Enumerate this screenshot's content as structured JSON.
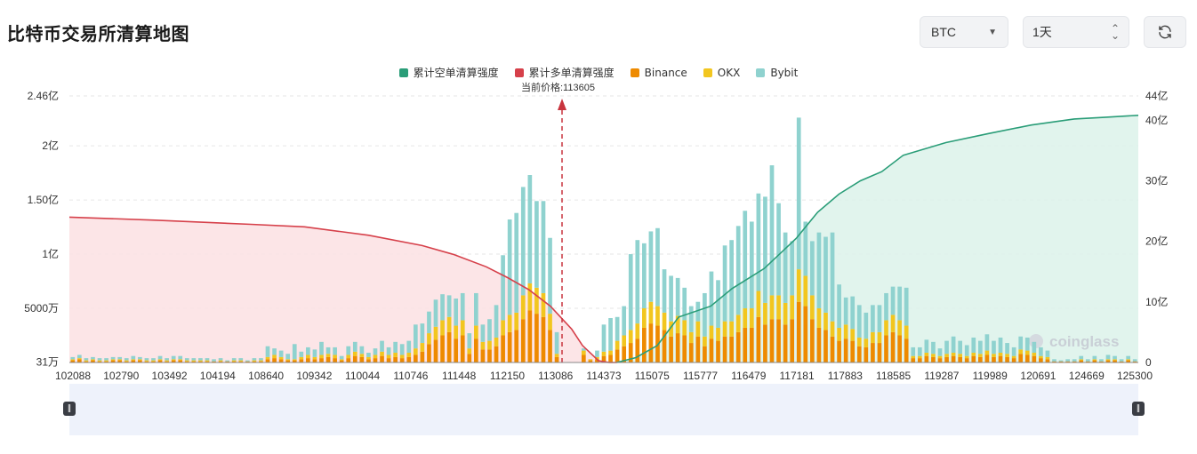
{
  "page": {
    "title": "比特币交易所清算地图",
    "coin_select": {
      "value": "BTC"
    },
    "period_select": {
      "value": "1天"
    },
    "refresh_icon": "refresh-icon",
    "watermark": "coinglass",
    "current_price_label": "当前价格:113605"
  },
  "chart_data": {
    "type": "bar",
    "title": "",
    "legend": [
      {
        "name": "累计空单清算强度",
        "color": "#2a9d78"
      },
      {
        "name": "累计多单清算强度",
        "color": "#d6404a"
      },
      {
        "name": "Binance",
        "color": "#ee8a00"
      },
      {
        "name": "OKX",
        "color": "#f2c61f"
      },
      {
        "name": "Bybit",
        "color": "#8fd2cf"
      }
    ],
    "current_price": 113605,
    "x_tick_labels": [
      "102088",
      "102790",
      "103492",
      "104194",
      "108640",
      "109342",
      "110044",
      "110746",
      "111448",
      "112150",
      "113086",
      "114373",
      "115075",
      "115777",
      "116479",
      "117181",
      "117883",
      "118585",
      "119287",
      "119989",
      "120691",
      "124669",
      "125300"
    ],
    "y_left_ticks": [
      "31万",
      "5000万",
      "1亿",
      "1.50亿",
      "2亿",
      "2.46亿"
    ],
    "y_left_values": [
      0.0031,
      0.5,
      1.0,
      1.5,
      2.0,
      2.46
    ],
    "y_left_unit": "亿",
    "y_right_ticks": [
      "0",
      "10亿",
      "20亿",
      "30亿",
      "40亿",
      "44亿"
    ],
    "y_right_values": [
      0,
      10,
      20,
      30,
      40,
      44
    ],
    "y_right_unit": "亿",
    "bars": {
      "binance": [
        0.02,
        0.03,
        0.01,
        0.02,
        0.01,
        0.01,
        0.02,
        0.02,
        0.01,
        0.02,
        0.02,
        0.01,
        0.01,
        0.02,
        0.01,
        0.02,
        0.02,
        0.01,
        0.01,
        0.01,
        0.01,
        0.01,
        0.01,
        0.01,
        0.01,
        0.01,
        0.01,
        0.01,
        0.01,
        0.03,
        0.04,
        0.03,
        0.02,
        0.02,
        0.03,
        0.04,
        0.03,
        0.04,
        0.05,
        0.04,
        0.02,
        0.04,
        0.06,
        0.05,
        0.03,
        0.04,
        0.06,
        0.04,
        0.05,
        0.04,
        0.05,
        0.07,
        0.1,
        0.17,
        0.21,
        0.25,
        0.28,
        0.22,
        0.25,
        0.08,
        0.22,
        0.12,
        0.12,
        0.15,
        0.25,
        0.28,
        0.3,
        0.4,
        0.48,
        0.45,
        0.42,
        0.3,
        0.05,
        0.0,
        0.0,
        0.0,
        0.07,
        0.02,
        0.03,
        0.06,
        0.07,
        0.12,
        0.15,
        0.18,
        0.22,
        0.32,
        0.36,
        0.34,
        0.3,
        0.24,
        0.27,
        0.25,
        0.18,
        0.24,
        0.15,
        0.22,
        0.2,
        0.24,
        0.24,
        0.28,
        0.32,
        0.32,
        0.42,
        0.35,
        0.4,
        0.4,
        0.35,
        0.4,
        0.56,
        0.52,
        0.4,
        0.32,
        0.3,
        0.24,
        0.2,
        0.22,
        0.2,
        0.15,
        0.14,
        0.18,
        0.18,
        0.25,
        0.28,
        0.25,
        0.22,
        0.04,
        0.04,
        0.06,
        0.05,
        0.04,
        0.05,
        0.06,
        0.05,
        0.04,
        0.06,
        0.05,
        0.07,
        0.05,
        0.06,
        0.05,
        0.04,
        0.08,
        0.07,
        0.06,
        0.04,
        0.03,
        0.01,
        0.01,
        0.01,
        0.01,
        0.02,
        0.01,
        0.02,
        0.01,
        0.02,
        0.02,
        0.01,
        0.02,
        0.01
      ],
      "okx": [
        0.01,
        0.01,
        0.01,
        0.01,
        0.01,
        0.01,
        0.01,
        0.01,
        0.01,
        0.01,
        0.01,
        0.01,
        0.01,
        0.01,
        0.01,
        0.01,
        0.01,
        0.01,
        0.01,
        0.01,
        0.01,
        0.0,
        0.01,
        0.0,
        0.01,
        0.01,
        0.0,
        0.01,
        0.01,
        0.02,
        0.03,
        0.02,
        0.01,
        0.01,
        0.02,
        0.03,
        0.02,
        0.03,
        0.03,
        0.03,
        0.01,
        0.03,
        0.04,
        0.03,
        0.02,
        0.03,
        0.04,
        0.03,
        0.04,
        0.03,
        0.04,
        0.06,
        0.08,
        0.1,
        0.12,
        0.14,
        0.14,
        0.12,
        0.14,
        0.05,
        0.12,
        0.07,
        0.08,
        0.08,
        0.14,
        0.16,
        0.16,
        0.22,
        0.25,
        0.24,
        0.22,
        0.15,
        0.03,
        0.0,
        0.0,
        0.0,
        0.04,
        0.01,
        0.02,
        0.04,
        0.04,
        0.08,
        0.1,
        0.12,
        0.14,
        0.18,
        0.2,
        0.18,
        0.16,
        0.14,
        0.16,
        0.14,
        0.1,
        0.14,
        0.09,
        0.12,
        0.12,
        0.14,
        0.14,
        0.16,
        0.18,
        0.18,
        0.24,
        0.2,
        0.22,
        0.22,
        0.2,
        0.22,
        0.3,
        0.28,
        0.22,
        0.18,
        0.16,
        0.14,
        0.12,
        0.13,
        0.11,
        0.08,
        0.08,
        0.1,
        0.1,
        0.14,
        0.16,
        0.14,
        0.12,
        0.02,
        0.02,
        0.03,
        0.03,
        0.02,
        0.03,
        0.03,
        0.03,
        0.02,
        0.03,
        0.03,
        0.04,
        0.03,
        0.03,
        0.03,
        0.02,
        0.04,
        0.04,
        0.03,
        0.02,
        0.02,
        0.0,
        0.0,
        0.0,
        0.0,
        0.01,
        0.0,
        0.01,
        0.0,
        0.01,
        0.01,
        0.0,
        0.01,
        0.0
      ],
      "bybit": [
        0.02,
        0.03,
        0.02,
        0.02,
        0.02,
        0.02,
        0.02,
        0.02,
        0.02,
        0.03,
        0.02,
        0.02,
        0.02,
        0.03,
        0.02,
        0.03,
        0.03,
        0.02,
        0.02,
        0.02,
        0.02,
        0.02,
        0.02,
        0.01,
        0.02,
        0.02,
        0.01,
        0.02,
        0.02,
        0.1,
        0.06,
        0.06,
        0.05,
        0.14,
        0.05,
        0.07,
        0.07,
        0.12,
        0.06,
        0.07,
        0.03,
        0.08,
        0.09,
        0.07,
        0.04,
        0.06,
        0.1,
        0.07,
        0.1,
        0.1,
        0.11,
        0.22,
        0.18,
        0.2,
        0.25,
        0.24,
        0.2,
        0.25,
        0.25,
        0.14,
        0.3,
        0.16,
        0.2,
        0.3,
        0.6,
        0.88,
        0.92,
        1.0,
        1.0,
        0.8,
        0.85,
        0.7,
        0.2,
        0.0,
        0.0,
        0.0,
        0.02,
        0.0,
        0.06,
        0.25,
        0.3,
        0.22,
        0.27,
        0.7,
        0.77,
        0.6,
        0.65,
        0.72,
        0.4,
        0.42,
        0.35,
        0.3,
        0.24,
        0.18,
        0.4,
        0.5,
        0.44,
        0.7,
        0.75,
        0.82,
        0.9,
        0.8,
        0.9,
        0.98,
        1.2,
        0.85,
        0.65,
        0.5,
        1.4,
        0.5,
        0.5,
        0.7,
        0.7,
        0.82,
        0.4,
        0.25,
        0.3,
        0.3,
        0.24,
        0.25,
        0.25,
        0.25,
        0.26,
        0.31,
        0.35,
        0.08,
        0.08,
        0.12,
        0.11,
        0.07,
        0.12,
        0.15,
        0.12,
        0.1,
        0.14,
        0.12,
        0.15,
        0.12,
        0.14,
        0.1,
        0.08,
        0.12,
        0.12,
        0.1,
        0.08,
        0.06,
        0.02,
        0.01,
        0.02,
        0.02,
        0.03,
        0.02,
        0.03,
        0.02,
        0.04,
        0.03,
        0.02,
        0.03,
        0.02
      ]
    },
    "cumulative_long": {
      "x": [
        0,
        0.08,
        0.17,
        0.22,
        0.28,
        0.33,
        0.36,
        0.39,
        0.41,
        0.43,
        0.45,
        0.47,
        0.48,
        0.495,
        0.505,
        0.512
      ],
      "y": [
        24.0,
        23.5,
        22.8,
        22.4,
        21.0,
        19.3,
        17.8,
        15.8,
        14.0,
        12.0,
        9.3,
        5.5,
        2.8,
        0.3,
        0.0,
        0.0
      ]
    },
    "cumulative_short": {
      "x": [
        0.512,
        0.53,
        0.55,
        0.57,
        0.6,
        0.62,
        0.65,
        0.68,
        0.7,
        0.72,
        0.74,
        0.76,
        0.78,
        0.82,
        0.86,
        0.9,
        0.94,
        0.97,
        1.0
      ],
      "y": [
        0.0,
        0.8,
        2.8,
        7.5,
        9.3,
        12.2,
        15.5,
        20.5,
        24.8,
        27.8,
        30.0,
        31.5,
        34.2,
        36.3,
        37.8,
        39.2,
        40.2,
        40.5,
        40.8
      ]
    }
  }
}
